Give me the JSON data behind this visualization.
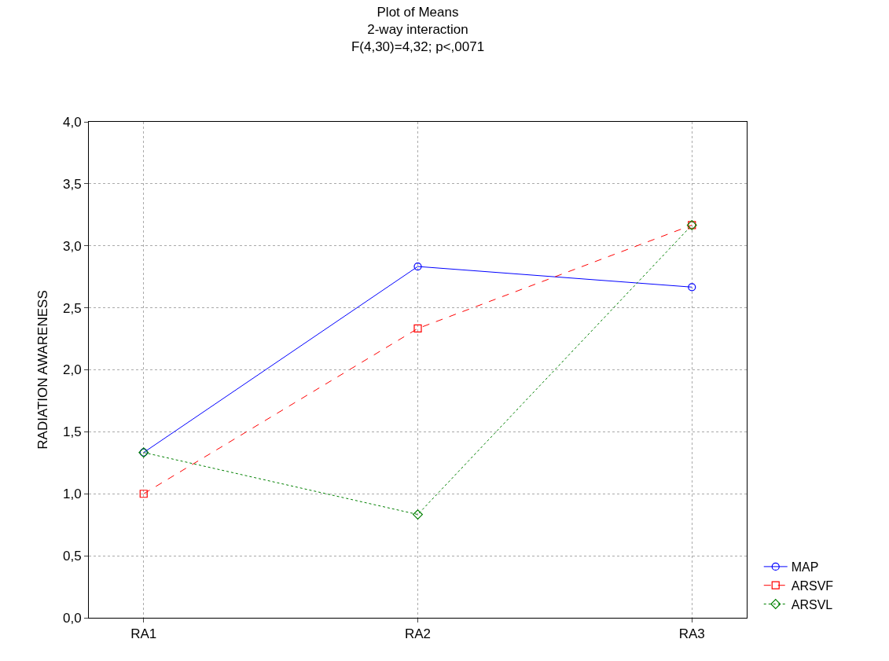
{
  "chart_data": {
    "type": "line",
    "title": "Plot of Means",
    "subtitle": "2-way interaction\nF(4,30)=4,32; p<,0071",
    "ylabel": "RADIATION AWARENESS",
    "categories": [
      "RA1",
      "RA2",
      "RA3"
    ],
    "series": [
      {
        "name": "MAP",
        "color": "#0000ff",
        "values": [
          1.333,
          2.833,
          2.667
        ],
        "marker": "circle",
        "line_style": "solid"
      },
      {
        "name": "ARSVF",
        "color": "#ff0000",
        "values": [
          1.0,
          2.333,
          3.167
        ],
        "marker": "square",
        "line_style": "dashed"
      },
      {
        "name": "ARSVL",
        "color": "#008000",
        "values": [
          1.333,
          0.833,
          3.167
        ],
        "marker": "diamond",
        "line_style": "dotted"
      }
    ],
    "ylim": [
      0,
      4
    ],
    "yticks": [
      {
        "value": 0,
        "label": "0,0"
      },
      {
        "value": 0.5,
        "label": "0,5"
      },
      {
        "value": 1,
        "label": "1,0"
      },
      {
        "value": 1.5,
        "label": "1,5"
      },
      {
        "value": 2,
        "label": "2,0"
      },
      {
        "value": 2.5,
        "label": "2,5"
      },
      {
        "value": 3,
        "label": "3,0"
      },
      {
        "value": 3.5,
        "label": "3,5"
      },
      {
        "value": 4,
        "label": "4,0"
      }
    ],
    "grid": true,
    "legend": "bottom right"
  }
}
